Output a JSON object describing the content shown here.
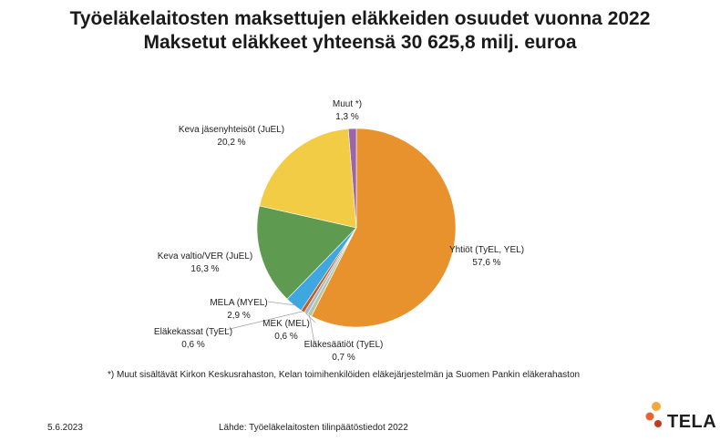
{
  "title": "Työeläkelaitosten maksettujen eläkkeiden osuudet vuonna 2022",
  "subtitle": "Maksetut eläkkeet yhteensä 30 625,8 milj. euroa",
  "chart_data": {
    "type": "pie",
    "start_angle_deg": 0,
    "direction": "clockwise",
    "slices": [
      {
        "name": "Yhtiöt (TyEL, YEL)",
        "value": 57.6,
        "label": "57,6 %",
        "color": "#E8922E"
      },
      {
        "name": "Eläkesäätiöt (TyEL)",
        "value": 0.7,
        "label": "0,7 %",
        "color": "#B8C7A9"
      },
      {
        "name": "MEK (MEL)",
        "value": 0.6,
        "label": "0,6 %",
        "color": "#A8B8C8"
      },
      {
        "name": "Eläkekassat (TyEL)",
        "value": 0.6,
        "label": "0,6 %",
        "color": "#C45A1F"
      },
      {
        "name": "MELA (MYEL)",
        "value": 2.9,
        "label": "2,9 %",
        "color": "#3FA7E0"
      },
      {
        "name": "Keva valtio/VER (JuEL)",
        "value": 16.3,
        "label": "16,3 %",
        "color": "#5E9B50"
      },
      {
        "name": "Keva jäsenyhteisöt (JuEL)",
        "value": 20.2,
        "label": "20,2 %",
        "color": "#F2CC45"
      },
      {
        "name": "Muut *)",
        "value": 1.3,
        "label": "1,3 %",
        "color": "#9966AA"
      }
    ]
  },
  "footnote": "*) Muut sisältävät  Kirkon Keskusrahaston, Kelan toimihenkilöiden eläkejärjestelmän ja Suomen Pankin eläkerahaston",
  "date": "5.6.2023",
  "source": "Lähde: Työeläkelaitosten tilinpäätöstiedot 2022",
  "logo": {
    "text": "TELA",
    "dot_colors": [
      "#F2A93B",
      "#E8632E",
      "#C43A1F"
    ]
  }
}
